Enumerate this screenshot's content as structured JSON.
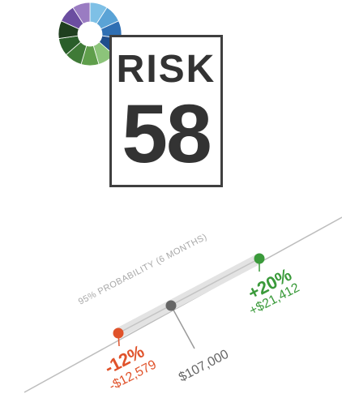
{
  "risk": {
    "label": "RISK",
    "score": "58"
  },
  "projection": {
    "probability_label": "95% PROBABILITY (6 MONTHS)",
    "low": {
      "percent": "-12%",
      "amount": "-$12,579",
      "color": "#e0522a"
    },
    "current": {
      "amount": "$107,000",
      "color": "#666666"
    },
    "high": {
      "percent": "+20%",
      "amount": "+$21,412",
      "color": "#3a9a3a"
    }
  },
  "logo": {
    "icon": "donut-chart-icon",
    "segment_colors": [
      "#7ec0e6",
      "#5aa3d6",
      "#2f6fb3",
      "#1f4e8c",
      "#8cc47a",
      "#5f9e4b",
      "#3f7a37",
      "#2a5e2a",
      "#1f3f1f",
      "#6b4ea0",
      "#9a7cc2"
    ]
  }
}
